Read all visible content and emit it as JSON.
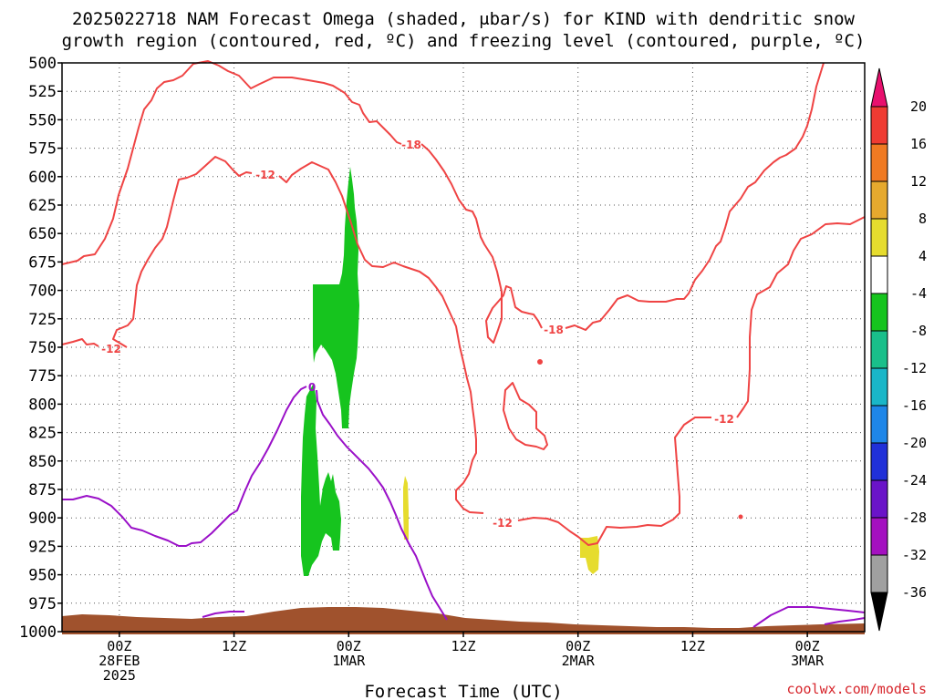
{
  "chart_data": {
    "type": "heatmap",
    "title_line1": "2025022718 NAM Forecast Omega (shaded, μbar/s) for KIND with dendritic snow",
    "title_line2": "growth region (contoured, red, ºC) and freezing level (contoured, purple, ºC)",
    "xlabel": "Forecast Time (UTC)",
    "ylabel": "",
    "x_ticks": [
      {
        "hour": 6,
        "label1": "00Z",
        "label2": "28FEB",
        "label3": "2025"
      },
      {
        "hour": 18,
        "label1": "12Z",
        "label2": "",
        "label3": ""
      },
      {
        "hour": 30,
        "label1": "00Z",
        "label2": "1MAR",
        "label3": ""
      },
      {
        "hour": 42,
        "label1": "12Z",
        "label2": "",
        "label3": ""
      },
      {
        "hour": 54,
        "label1": "00Z",
        "label2": "2MAR",
        "label3": ""
      },
      {
        "hour": 66,
        "label1": "12Z",
        "label2": "",
        "label3": ""
      },
      {
        "hour": 78,
        "label1": "00Z",
        "label2": "3MAR",
        "label3": ""
      }
    ],
    "xlim_hours": [
      0,
      84
    ],
    "y_ticks": [
      "500",
      "525",
      "550",
      "575",
      "600",
      "625",
      "650",
      "675",
      "700",
      "725",
      "750",
      "775",
      "800",
      "825",
      "850",
      "875",
      "900",
      "925",
      "950",
      "975",
      "1000"
    ],
    "ylim_hPa": [
      500,
      1000
    ],
    "grid": true,
    "colorbar": {
      "labels": [
        "20",
        "16",
        "12",
        "8",
        "4",
        "-4",
        "-8",
        "-12",
        "-16",
        "-20",
        "-24",
        "-28",
        "-32",
        "-36"
      ],
      "colors": [
        "#e8106e",
        "#ef3b32",
        "#f07a22",
        "#e6a92e",
        "#e6dc2e",
        "#ffffff",
        "#16c41e",
        "#19bf8a",
        "#19b6c8",
        "#1e86e8",
        "#2030d8",
        "#6a14c8",
        "#a410c0",
        "#a0a0a0",
        "#000000"
      ]
    },
    "contour_labels": {
      "red": [
        "-18",
        "-12"
      ],
      "purple": [
        "0"
      ]
    },
    "watermark": "coolwx.com/models",
    "colors": {
      "dgz_contour": "#ef4444",
      "freezing_contour": "#9a10c8",
      "terrain": "#a0522d",
      "omega_minus4_to_minus8": "#16c41e",
      "omega_4_to_8": "#e6dc2e"
    }
  }
}
